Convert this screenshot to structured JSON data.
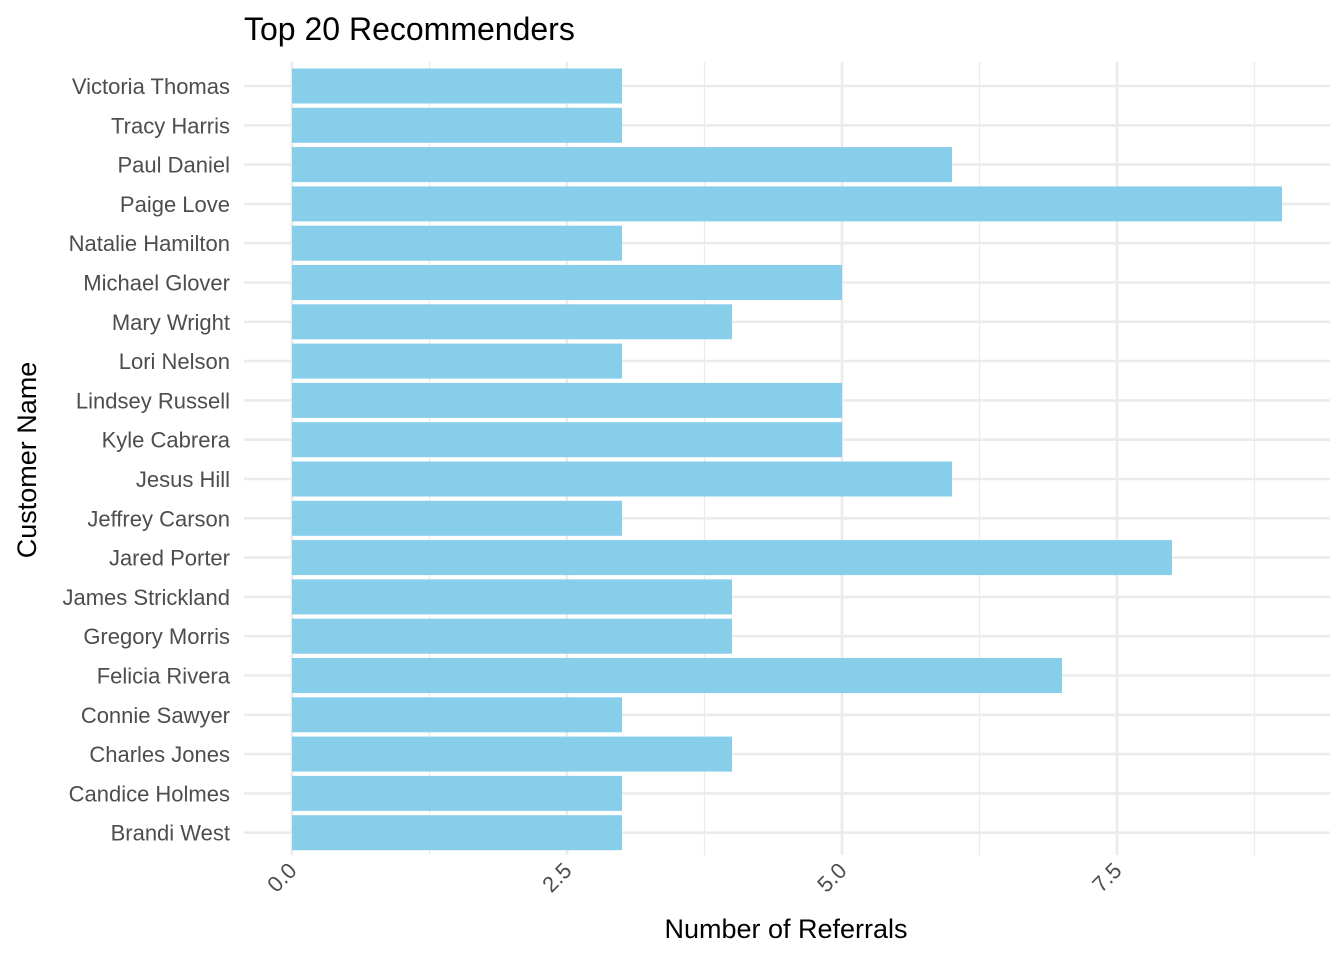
{
  "chart_data": {
    "type": "bar",
    "orientation": "horizontal",
    "title": "Top 20 Recommenders",
    "xlabel": "Number of Referrals",
    "ylabel": "Customer Name",
    "categories": [
      "Victoria Thomas",
      "Tracy Harris",
      "Paul Daniel",
      "Paige Love",
      "Natalie Hamilton",
      "Michael Glover",
      "Mary Wright",
      "Lori Nelson",
      "Lindsey Russell",
      "Kyle Cabrera",
      "Jesus Hill",
      "Jeffrey Carson",
      "Jared Porter",
      "James Strickland",
      "Gregory Morris",
      "Felicia Rivera",
      "Connie Sawyer",
      "Charles Jones",
      "Candice Holmes",
      "Brandi West"
    ],
    "values": [
      3,
      3,
      6,
      9,
      3,
      5,
      4,
      3,
      5,
      5,
      6,
      3,
      8,
      4,
      4,
      7,
      3,
      4,
      3,
      3
    ],
    "xlim": [
      0,
      9.45
    ],
    "x_ticks": [
      0,
      2.5,
      5,
      7.5
    ],
    "x_tick_labels": [
      "0.0",
      "2.5",
      "5.0",
      "7.5"
    ],
    "grid": true,
    "bar_color": "#87ceeb"
  }
}
